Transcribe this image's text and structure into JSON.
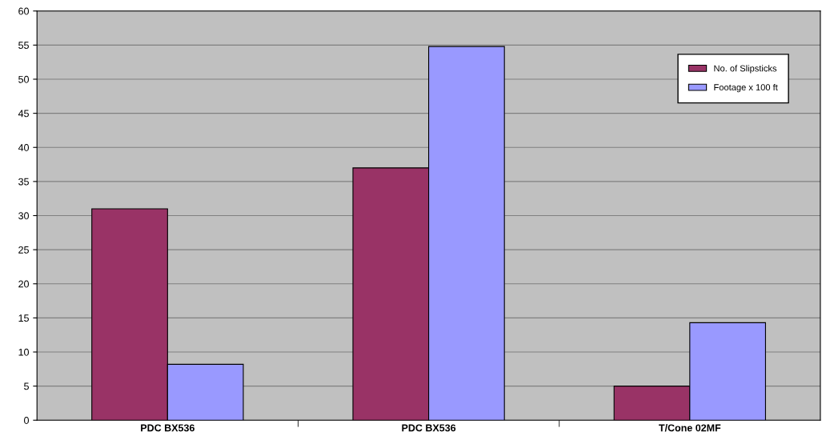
{
  "chart_data": {
    "type": "bar",
    "categories": [
      "PDC BX536",
      "PDC BX536",
      "T/Cone 02MF"
    ],
    "series": [
      {
        "name": "No. of Slipsticks",
        "color": "#993366",
        "values": [
          31,
          37,
          5
        ]
      },
      {
        "name": "Footage x 100 ft",
        "color": "#9999ff",
        "values": [
          8.2,
          54.8,
          14.3
        ]
      }
    ],
    "ylim": [
      0,
      60
    ],
    "yticks": [
      0,
      5,
      10,
      15,
      20,
      25,
      30,
      35,
      40,
      45,
      50,
      55,
      60
    ],
    "grid": "y",
    "legend": "top right"
  }
}
